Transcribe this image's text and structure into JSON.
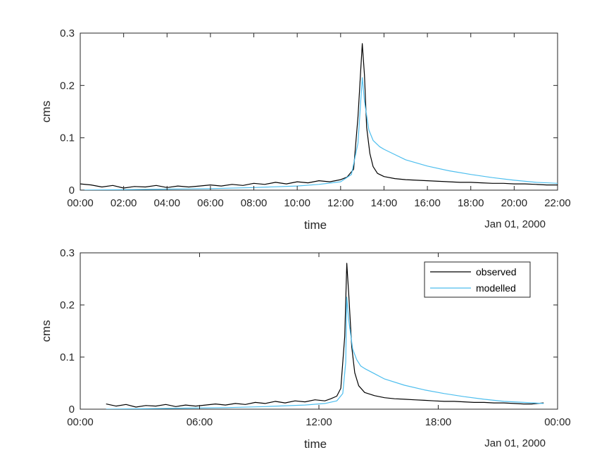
{
  "chart_data": [
    {
      "type": "line",
      "title": "",
      "xlabel": "time",
      "ylabel": "cms",
      "date_label": "Jan 01, 2000",
      "xlim": [
        0,
        22
      ],
      "ylim": [
        0,
        0.3
      ],
      "x_ticks": [
        0,
        2,
        4,
        6,
        8,
        10,
        12,
        14,
        16,
        18,
        20,
        22
      ],
      "x_tick_labels": [
        "00:00",
        "02:00",
        "04:00",
        "06:00",
        "08:00",
        "10:00",
        "12:00",
        "14:00",
        "16:00",
        "18:00",
        "20:00",
        "22:00"
      ],
      "y_ticks": [
        0,
        0.1,
        0.2,
        0.3
      ],
      "y_tick_labels": [
        "0",
        "0.1",
        "0.2",
        "0.3"
      ],
      "grid": false,
      "legend": null,
      "series": [
        {
          "color": "#000000",
          "x": [
            0.0,
            0.5,
            1.0,
            1.5,
            2.0,
            2.5,
            3.0,
            3.5,
            4.0,
            4.5,
            5.0,
            5.5,
            6.0,
            6.5,
            7.0,
            7.5,
            8.0,
            8.5,
            9.0,
            9.5,
            10.0,
            10.5,
            11.0,
            11.5,
            12.0,
            12.3,
            12.6,
            12.8,
            13.0,
            13.1,
            13.2,
            13.35,
            13.5,
            13.7,
            14.0,
            14.5,
            15.0,
            15.5,
            16.0,
            16.5,
            17.0,
            17.5,
            18.0,
            18.5,
            19.0,
            19.5,
            20.0,
            20.5,
            21.0,
            21.5,
            22.0
          ],
          "values": [
            0.012,
            0.01,
            0.006,
            0.009,
            0.004,
            0.007,
            0.006,
            0.009,
            0.005,
            0.008,
            0.006,
            0.008,
            0.01,
            0.008,
            0.011,
            0.009,
            0.013,
            0.011,
            0.015,
            0.012,
            0.016,
            0.014,
            0.018,
            0.016,
            0.02,
            0.025,
            0.04,
            0.14,
            0.28,
            0.22,
            0.12,
            0.07,
            0.045,
            0.032,
            0.026,
            0.022,
            0.02,
            0.019,
            0.018,
            0.017,
            0.016,
            0.015,
            0.015,
            0.014,
            0.013,
            0.013,
            0.012,
            0.012,
            0.011,
            0.01,
            0.01
          ]
        },
        {
          "color": "#4DBEEE",
          "x": [
            0.0,
            2.0,
            4.0,
            6.0,
            8.0,
            10.0,
            11.0,
            12.0,
            12.5,
            12.8,
            13.0,
            13.1,
            13.3,
            13.5,
            13.8,
            14.0,
            14.5,
            15.0,
            16.0,
            17.0,
            18.0,
            19.0,
            20.0,
            21.0,
            22.0
          ],
          "values": [
            0.0,
            0.001,
            0.002,
            0.003,
            0.005,
            0.008,
            0.011,
            0.016,
            0.03,
            0.09,
            0.215,
            0.17,
            0.115,
            0.095,
            0.083,
            0.078,
            0.068,
            0.058,
            0.046,
            0.037,
            0.03,
            0.024,
            0.019,
            0.015,
            0.013
          ]
        }
      ]
    },
    {
      "type": "line",
      "title": "",
      "xlabel": "time",
      "ylabel": "cms",
      "date_label": "Jan 01, 2000",
      "xlim": [
        0,
        24
      ],
      "ylim": [
        0,
        0.3
      ],
      "x_ticks": [
        0,
        6,
        12,
        18,
        24
      ],
      "x_tick_labels": [
        "00:00",
        "06:00",
        "12:00",
        "18:00",
        "00:00"
      ],
      "y_ticks": [
        0,
        0.1,
        0.2,
        0.3
      ],
      "y_tick_labels": [
        "0",
        "0.1",
        "0.2",
        "0.3"
      ],
      "grid": false,
      "legend": {
        "placement": "top-right",
        "entries": [
          "observed",
          "modelled"
        ]
      },
      "series": [
        {
          "name": "observed",
          "color": "#000000",
          "x": [
            1.3,
            1.8,
            2.3,
            2.8,
            3.3,
            3.8,
            4.3,
            4.8,
            5.3,
            5.8,
            6.3,
            6.8,
            7.3,
            7.8,
            8.3,
            8.8,
            9.3,
            9.8,
            10.3,
            10.8,
            11.3,
            11.8,
            12.3,
            12.6,
            12.9,
            13.1,
            13.3,
            13.4,
            13.5,
            13.65,
            13.8,
            14.0,
            14.3,
            14.8,
            15.3,
            15.8,
            16.3,
            16.8,
            17.3,
            17.8,
            18.3,
            18.8,
            19.3,
            19.8,
            20.3,
            20.8,
            21.3,
            21.8,
            22.3,
            22.7,
            23.3
          ],
          "values": [
            0.01,
            0.006,
            0.009,
            0.004,
            0.007,
            0.006,
            0.009,
            0.005,
            0.008,
            0.006,
            0.008,
            0.01,
            0.008,
            0.011,
            0.009,
            0.013,
            0.011,
            0.015,
            0.012,
            0.016,
            0.014,
            0.018,
            0.016,
            0.02,
            0.025,
            0.04,
            0.14,
            0.28,
            0.22,
            0.12,
            0.07,
            0.045,
            0.032,
            0.026,
            0.022,
            0.02,
            0.019,
            0.018,
            0.017,
            0.016,
            0.015,
            0.015,
            0.014,
            0.013,
            0.013,
            0.012,
            0.012,
            0.011,
            0.01,
            0.01,
            0.012
          ]
        },
        {
          "name": "modelled",
          "color": "#4DBEEE",
          "x": [
            1.3,
            3.3,
            5.3,
            7.3,
            9.3,
            11.3,
            12.3,
            12.9,
            13.2,
            13.35,
            13.4,
            13.5,
            13.7,
            13.9,
            14.1,
            14.3,
            14.8,
            15.3,
            16.3,
            17.3,
            18.3,
            19.3,
            20.3,
            21.3,
            22.3,
            23.3
          ],
          "values": [
            0.0,
            0.001,
            0.002,
            0.003,
            0.005,
            0.008,
            0.011,
            0.016,
            0.03,
            0.09,
            0.215,
            0.17,
            0.115,
            0.095,
            0.083,
            0.078,
            0.068,
            0.058,
            0.046,
            0.037,
            0.03,
            0.024,
            0.019,
            0.015,
            0.013,
            0.011
          ]
        }
      ]
    }
  ]
}
